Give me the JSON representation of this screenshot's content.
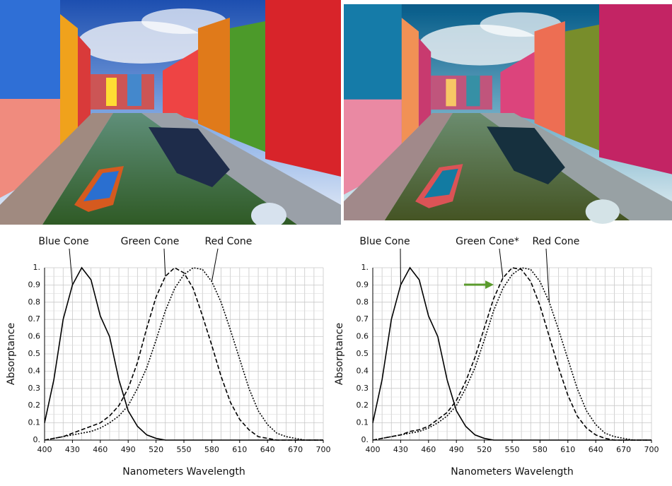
{
  "chart_data": [
    {
      "type": "line",
      "x_label": "Nanometers Wavelength",
      "y_label": "Absorptance",
      "x": [
        400,
        410,
        420,
        430,
        440,
        450,
        460,
        470,
        480,
        490,
        500,
        510,
        520,
        530,
        540,
        550,
        560,
        570,
        580,
        590,
        600,
        610,
        620,
        630,
        640,
        650,
        660,
        670,
        680,
        690,
        700
      ],
      "xlim": [
        400,
        700
      ],
      "ylim": [
        0,
        1
      ],
      "xticks": [
        400,
        430,
        460,
        490,
        520,
        550,
        580,
        610,
        640,
        670,
        700
      ],
      "yticks": [
        {
          "value": 0,
          "label": "0."
        },
        0.1,
        0.2,
        0.3,
        0.4,
        0.5,
        0.6,
        0.7,
        0.8,
        0.9,
        {
          "value": 1,
          "label": "1."
        }
      ],
      "grid": true,
      "series": [
        {
          "name": "Blue Cone",
          "color": "#000000",
          "dash": "solid",
          "values": [
            0.1,
            0.35,
            0.7,
            0.9,
            1.0,
            0.93,
            0.72,
            0.6,
            0.35,
            0.17,
            0.08,
            0.03,
            0.01,
            0,
            0,
            0,
            0,
            0,
            0,
            0,
            0,
            0,
            0,
            0,
            0,
            0,
            0,
            0,
            0,
            0,
            0
          ]
        },
        {
          "name": "Green Cone",
          "color": "#000000",
          "dash": "dashed",
          "values": [
            0,
            0.01,
            0.02,
            0.04,
            0.06,
            0.08,
            0.1,
            0.14,
            0.2,
            0.3,
            0.45,
            0.65,
            0.83,
            0.95,
            1.0,
            0.97,
            0.88,
            0.72,
            0.55,
            0.37,
            0.22,
            0.12,
            0.06,
            0.02,
            0.01,
            0,
            0,
            0,
            0,
            0,
            0
          ]
        },
        {
          "name": "Red Cone",
          "color": "#000000",
          "dash": "dotted",
          "values": [
            0,
            0.01,
            0.02,
            0.03,
            0.04,
            0.05,
            0.07,
            0.1,
            0.14,
            0.2,
            0.3,
            0.42,
            0.58,
            0.75,
            0.88,
            0.96,
            1.0,
            0.99,
            0.92,
            0.8,
            0.64,
            0.47,
            0.3,
            0.17,
            0.09,
            0.04,
            0.02,
            0.01,
            0,
            0,
            0
          ]
        }
      ]
    },
    {
      "type": "line",
      "x_label": "Nanometers Wavelength",
      "y_label": "Absorptance",
      "x": [
        400,
        410,
        420,
        430,
        440,
        450,
        460,
        470,
        480,
        490,
        500,
        510,
        520,
        530,
        540,
        550,
        560,
        570,
        580,
        590,
        600,
        610,
        620,
        630,
        640,
        650,
        660,
        670,
        680,
        690,
        700
      ],
      "xlim": [
        400,
        700
      ],
      "ylim": [
        0,
        1
      ],
      "xticks": [
        400,
        430,
        460,
        490,
        520,
        550,
        580,
        610,
        640,
        670,
        700
      ],
      "yticks": [
        {
          "value": 0,
          "label": "0."
        },
        0.1,
        0.2,
        0.3,
        0.4,
        0.5,
        0.6,
        0.7,
        0.8,
        0.9,
        {
          "value": 1,
          "label": "1."
        }
      ],
      "grid": true,
      "series": [
        {
          "name": "Blue Cone",
          "color": "#000000",
          "dash": "solid",
          "values": [
            0.1,
            0.35,
            0.7,
            0.9,
            1.0,
            0.93,
            0.72,
            0.6,
            0.35,
            0.17,
            0.08,
            0.03,
            0.01,
            0,
            0,
            0,
            0,
            0,
            0,
            0,
            0,
            0,
            0,
            0,
            0,
            0,
            0,
            0,
            0,
            0,
            0
          ]
        },
        {
          "name": "Green Cone*",
          "color": "#000000",
          "dash": "dashed",
          "values": [
            0,
            0.01,
            0.02,
            0.03,
            0.05,
            0.06,
            0.08,
            0.12,
            0.16,
            0.23,
            0.34,
            0.48,
            0.65,
            0.82,
            0.94,
            1.0,
            0.99,
            0.92,
            0.78,
            0.6,
            0.42,
            0.26,
            0.14,
            0.07,
            0.03,
            0.01,
            0,
            0,
            0,
            0,
            0
          ]
        },
        {
          "name": "Red Cone",
          "color": "#000000",
          "dash": "dotted",
          "values": [
            0,
            0.01,
            0.02,
            0.03,
            0.04,
            0.05,
            0.07,
            0.1,
            0.14,
            0.2,
            0.3,
            0.42,
            0.58,
            0.75,
            0.88,
            0.96,
            1.0,
            0.99,
            0.92,
            0.8,
            0.64,
            0.47,
            0.3,
            0.17,
            0.09,
            0.04,
            0.02,
            0.01,
            0,
            0,
            0
          ]
        }
      ]
    }
  ]
}
